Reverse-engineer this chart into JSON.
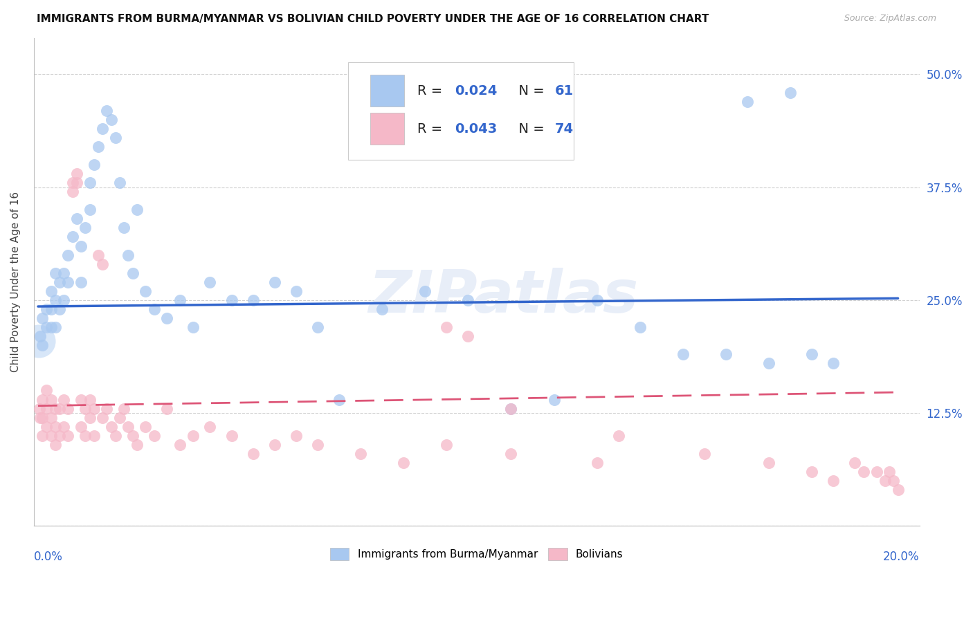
{
  "title": "IMMIGRANTS FROM BURMA/MYANMAR VS BOLIVIAN CHILD POVERTY UNDER THE AGE OF 16 CORRELATION CHART",
  "source": "Source: ZipAtlas.com",
  "ylabel": "Child Poverty Under the Age of 16",
  "ylim": [
    0.0,
    0.54
  ],
  "xlim": [
    -0.001,
    0.205
  ],
  "ytick_vals": [
    0.0,
    0.125,
    0.25,
    0.375,
    0.5
  ],
  "ytick_labels_right": [
    "",
    "12.5%",
    "25.0%",
    "37.5%",
    "50.0%"
  ],
  "legend_label1": "Immigrants from Burma/Myanmar",
  "legend_label2": "Bolivians",
  "R1": 0.024,
  "N1": 61,
  "R2": 0.043,
  "N2": 74,
  "blue_color": "#a8c8f0",
  "pink_color": "#f5b8c8",
  "line_blue": "#3366cc",
  "line_pink": "#dd5577",
  "watermark": "ZIPatlas",
  "blue_line_y0": 0.243,
  "blue_line_y1": 0.252,
  "pink_line_y0": 0.133,
  "pink_line_y1": 0.148,
  "blue_x": [
    0.0005,
    0.001,
    0.001,
    0.002,
    0.002,
    0.003,
    0.003,
    0.003,
    0.004,
    0.004,
    0.004,
    0.005,
    0.005,
    0.006,
    0.006,
    0.007,
    0.007,
    0.008,
    0.009,
    0.01,
    0.01,
    0.011,
    0.012,
    0.012,
    0.013,
    0.014,
    0.015,
    0.016,
    0.017,
    0.018,
    0.019,
    0.02,
    0.021,
    0.022,
    0.023,
    0.025,
    0.027,
    0.03,
    0.033,
    0.036,
    0.04,
    0.045,
    0.05,
    0.055,
    0.06,
    0.065,
    0.07,
    0.08,
    0.09,
    0.1,
    0.11,
    0.12,
    0.13,
    0.14,
    0.15,
    0.16,
    0.165,
    0.17,
    0.175,
    0.18,
    0.185
  ],
  "blue_y": [
    0.21,
    0.23,
    0.2,
    0.24,
    0.22,
    0.26,
    0.24,
    0.22,
    0.28,
    0.25,
    0.22,
    0.27,
    0.24,
    0.28,
    0.25,
    0.3,
    0.27,
    0.32,
    0.34,
    0.31,
    0.27,
    0.33,
    0.38,
    0.35,
    0.4,
    0.42,
    0.44,
    0.46,
    0.45,
    0.43,
    0.38,
    0.33,
    0.3,
    0.28,
    0.35,
    0.26,
    0.24,
    0.23,
    0.25,
    0.22,
    0.27,
    0.25,
    0.25,
    0.27,
    0.26,
    0.22,
    0.14,
    0.24,
    0.26,
    0.25,
    0.13,
    0.14,
    0.25,
    0.22,
    0.19,
    0.19,
    0.47,
    0.18,
    0.48,
    0.19,
    0.18
  ],
  "pink_x": [
    0.0003,
    0.0005,
    0.001,
    0.001,
    0.001,
    0.002,
    0.002,
    0.002,
    0.003,
    0.003,
    0.003,
    0.004,
    0.004,
    0.004,
    0.005,
    0.005,
    0.006,
    0.006,
    0.007,
    0.007,
    0.008,
    0.008,
    0.009,
    0.009,
    0.01,
    0.01,
    0.011,
    0.011,
    0.012,
    0.012,
    0.013,
    0.013,
    0.014,
    0.015,
    0.015,
    0.016,
    0.017,
    0.018,
    0.019,
    0.02,
    0.021,
    0.022,
    0.023,
    0.025,
    0.027,
    0.03,
    0.033,
    0.036,
    0.04,
    0.045,
    0.05,
    0.055,
    0.06,
    0.065,
    0.075,
    0.085,
    0.095,
    0.11,
    0.13,
    0.155,
    0.17,
    0.18,
    0.185,
    0.19,
    0.192,
    0.195,
    0.197,
    0.198,
    0.199,
    0.2,
    0.095,
    0.1,
    0.11,
    0.135
  ],
  "pink_y": [
    0.13,
    0.12,
    0.14,
    0.12,
    0.1,
    0.15,
    0.13,
    0.11,
    0.14,
    0.12,
    0.1,
    0.13,
    0.11,
    0.09,
    0.13,
    0.1,
    0.14,
    0.11,
    0.13,
    0.1,
    0.37,
    0.38,
    0.38,
    0.39,
    0.14,
    0.11,
    0.13,
    0.1,
    0.14,
    0.12,
    0.13,
    0.1,
    0.3,
    0.29,
    0.12,
    0.13,
    0.11,
    0.1,
    0.12,
    0.13,
    0.11,
    0.1,
    0.09,
    0.11,
    0.1,
    0.13,
    0.09,
    0.1,
    0.11,
    0.1,
    0.08,
    0.09,
    0.1,
    0.09,
    0.08,
    0.07,
    0.09,
    0.08,
    0.07,
    0.08,
    0.07,
    0.06,
    0.05,
    0.07,
    0.06,
    0.06,
    0.05,
    0.06,
    0.05,
    0.04,
    0.22,
    0.21,
    0.13,
    0.1
  ]
}
